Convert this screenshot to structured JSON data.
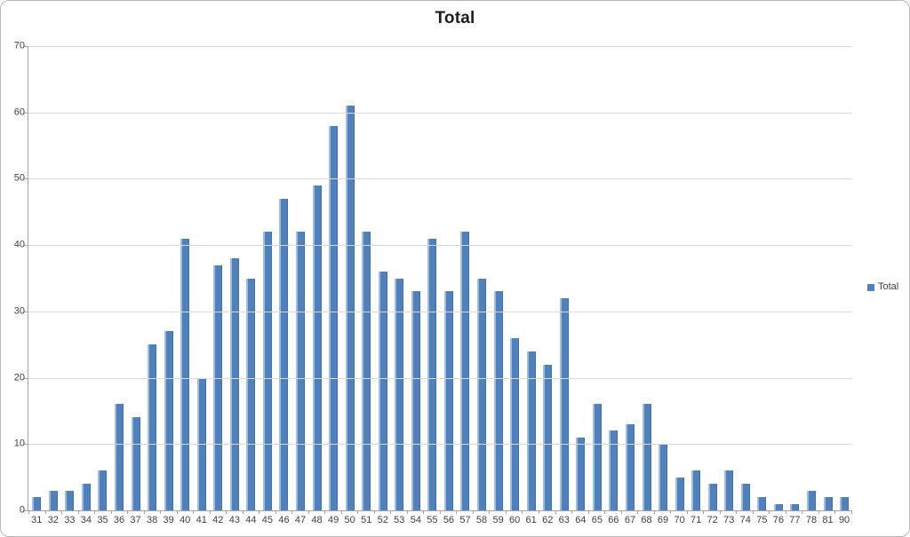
{
  "chart_data": {
    "type": "bar",
    "title": "Total",
    "categories": [
      "31",
      "32",
      "33",
      "34",
      "35",
      "36",
      "37",
      "38",
      "39",
      "40",
      "41",
      "42",
      "43",
      "44",
      "45",
      "46",
      "47",
      "48",
      "49",
      "50",
      "51",
      "52",
      "53",
      "54",
      "55",
      "56",
      "57",
      "58",
      "59",
      "60",
      "61",
      "62",
      "63",
      "64",
      "65",
      "66",
      "67",
      "68",
      "69",
      "70",
      "71",
      "72",
      "73",
      "74",
      "75",
      "76",
      "77",
      "78",
      "81",
      "90"
    ],
    "values": [
      2,
      3,
      3,
      4,
      6,
      16,
      14,
      25,
      27,
      41,
      20,
      37,
      38,
      35,
      42,
      47,
      42,
      49,
      58,
      61,
      42,
      36,
      35,
      33,
      41,
      33,
      42,
      35,
      33,
      26,
      24,
      22,
      32,
      11,
      16,
      12,
      13,
      16,
      10,
      5,
      6,
      4,
      6,
      4,
      2,
      1,
      1,
      3,
      2,
      2
    ],
    "series_name": "Total",
    "xlabel": "",
    "ylabel": "",
    "ylim": [
      0,
      70
    ],
    "yticks": [
      0,
      10,
      20,
      30,
      40,
      50,
      60,
      70
    ],
    "grid": true,
    "legend": {
      "position": "right",
      "label": "Total"
    },
    "colors": {
      "bar": "#4f81bd",
      "bar_highlight": "#a0bcde",
      "gridline": "#d9d9d9",
      "axis": "#a3a3a3",
      "tick_text": "#3f3f3f",
      "title_text": "#1f1f1f",
      "frame_border": "#b9b9b9",
      "background": "#ffffff"
    }
  }
}
